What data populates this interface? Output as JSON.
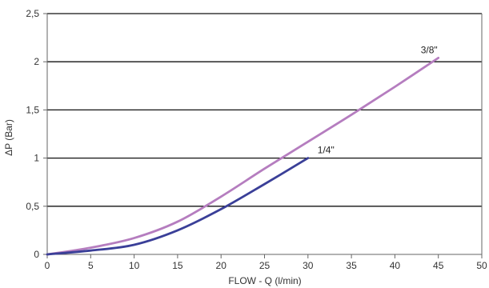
{
  "chart_data": {
    "type": "line",
    "title": "",
    "xlabel": "FLOW - Q (l/min)",
    "ylabel": "ΔP (Bar)",
    "xlim": [
      0,
      50
    ],
    "ylim": [
      0,
      2.5
    ],
    "x_ticks": [
      {
        "value": 0,
        "label": "0"
      },
      {
        "value": 5,
        "label": "5"
      },
      {
        "value": 10,
        "label": "10"
      },
      {
        "value": 15,
        "label": "15"
      },
      {
        "value": 20,
        "label": "20"
      },
      {
        "value": 25,
        "label": "25"
      },
      {
        "value": 30,
        "label": "30"
      },
      {
        "value": 35,
        "label": "35"
      },
      {
        "value": 40,
        "label": "40"
      },
      {
        "value": 45,
        "label": "45"
      },
      {
        "value": 50,
        "label": "50"
      }
    ],
    "y_ticks": [
      {
        "value": 0,
        "label": "0"
      },
      {
        "value": 0.5,
        "label": "0,5"
      },
      {
        "value": 1,
        "label": "1"
      },
      {
        "value": 1.5,
        "label": "1,5"
      },
      {
        "value": 2,
        "label": "2"
      },
      {
        "value": 2.5,
        "label": "2,5"
      }
    ],
    "grid": "horizontal",
    "legend": "none",
    "series": [
      {
        "name": "1/4\"",
        "color": "#3a3f98",
        "x": [
          0,
          5,
          10,
          15,
          20,
          25,
          30
        ],
        "y": [
          0,
          0.04,
          0.1,
          0.25,
          0.47,
          0.73,
          1.0
        ]
      },
      {
        "name": "3/8\"",
        "color": "#b57dbf",
        "x": [
          0,
          5,
          10,
          15,
          20,
          25,
          30,
          35,
          40,
          45
        ],
        "y": [
          0,
          0.07,
          0.17,
          0.34,
          0.6,
          0.89,
          1.17,
          1.45,
          1.74,
          2.04
        ]
      }
    ]
  }
}
